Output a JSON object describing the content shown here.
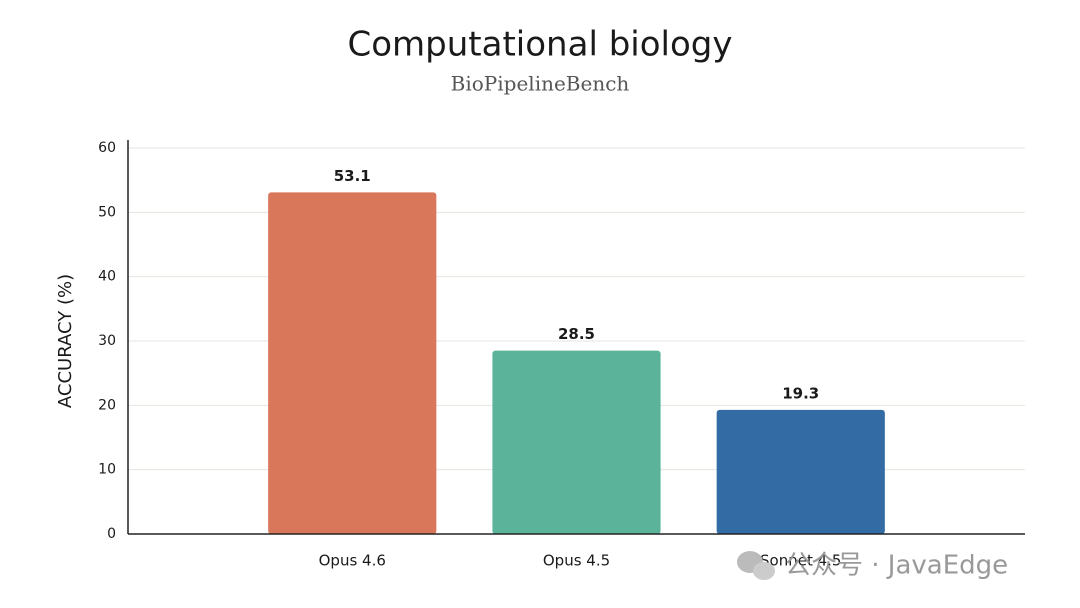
{
  "chart_data": {
    "type": "bar",
    "title": "Computational biology",
    "subtitle": "BioPipelineBench",
    "y_label": "ACCURACY (%)",
    "categories": [
      "Opus 4.6",
      "Opus 4.5",
      "Sonnet 4.5"
    ],
    "values": [
      53.1,
      28.5,
      19.3
    ],
    "colors": [
      "#d9775a",
      "#5bb39a",
      "#336ca4"
    ],
    "ylim": [
      0,
      60
    ],
    "yticks": [
      0,
      10,
      20,
      30,
      40,
      50,
      60
    ],
    "grid": true
  },
  "watermark": "公众号 · JavaEdge"
}
